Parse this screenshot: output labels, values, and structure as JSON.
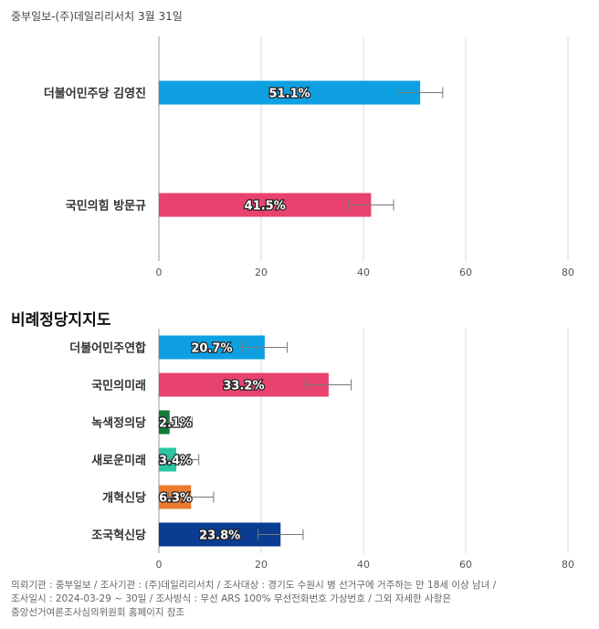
{
  "header": {
    "source": "중부일보-(주)데일리리서치 3월 31일"
  },
  "section2": {
    "title": "비례정당지지도"
  },
  "chart_data": [
    {
      "type": "bar",
      "orientation": "horizontal",
      "title": "",
      "categories": [
        "더불어민주당 김영진",
        "국민의힘 방문규"
      ],
      "values": [
        51.1,
        41.5
      ],
      "labels": [
        "51.1%",
        "41.5%"
      ],
      "error_margins": [
        4.4,
        4.4
      ],
      "colors": [
        "#0fa0e2",
        "#e8426f"
      ],
      "xlim": [
        0,
        80
      ],
      "xticks": [
        0,
        20,
        40,
        60,
        80
      ],
      "grid": true
    },
    {
      "type": "bar",
      "orientation": "horizontal",
      "title": "비례정당지지도",
      "categories": [
        "더불어민주연합",
        "국민의미래",
        "녹색정의당",
        "새로운미래",
        "개혁신당",
        "조국혁신당"
      ],
      "values": [
        20.7,
        33.2,
        2.1,
        3.4,
        6.3,
        23.8
      ],
      "labels": [
        "20.7%",
        "33.2%",
        "2.1%",
        "3.4%",
        "6.3%",
        "23.8%"
      ],
      "error_margins": [
        4.4,
        4.4,
        4.4,
        4.4,
        4.4,
        4.4
      ],
      "colors": [
        "#0fa0e2",
        "#e8426f",
        "#137a3a",
        "#2bc5a2",
        "#ea7a2e",
        "#0a3d91"
      ],
      "xlim": [
        0,
        80
      ],
      "xticks": [
        0,
        20,
        40,
        60,
        80
      ],
      "grid": true
    }
  ],
  "footer": {
    "line1": "의뢰기관 : 중부일보 / 조사기관 : (주)데일리리서치 / 조사대상 : 경기도 수원시 병 선거구에 거주하는 만 18세 이상 남녀 /",
    "line2": "조사일시 : 2024-03-29 ~ 30일 / 조사방식 : 무선 ARS 100% 무선전화번호 가상번호 / 그외 자세한 사항은",
    "line3": "중앙선거여론조사심의위원회 홈페이지 참조"
  }
}
